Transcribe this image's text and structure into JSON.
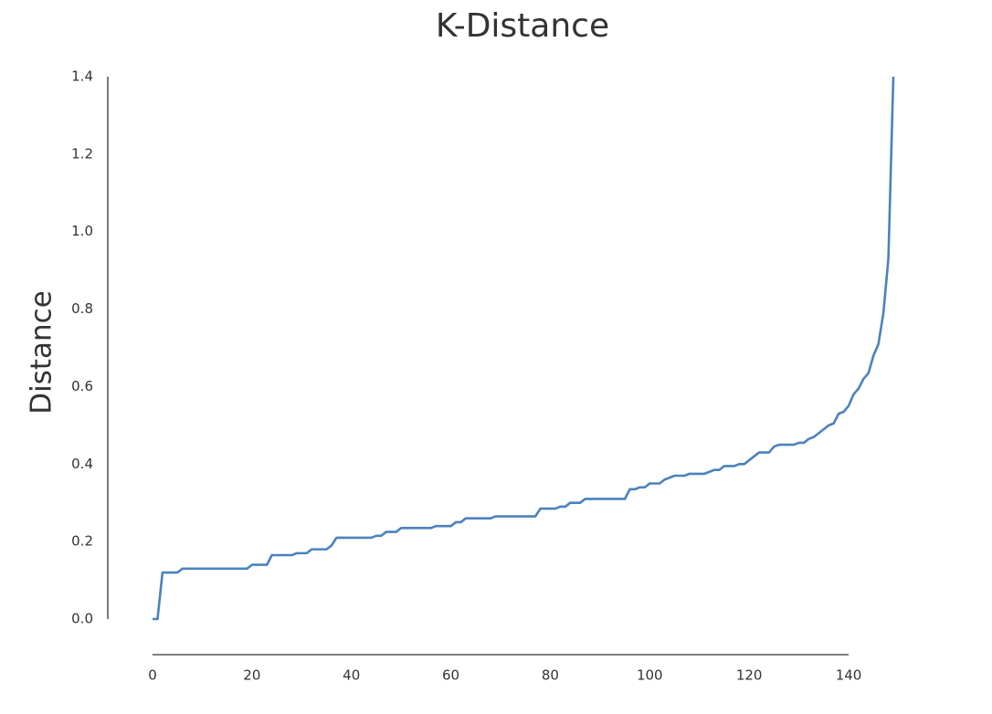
{
  "chart_data": {
    "type": "line",
    "title": "K-Distance",
    "y_label": "Distance",
    "color": "#4a82be",
    "grid": false,
    "x": [
      0,
      1,
      2,
      3,
      4,
      5,
      6,
      7,
      8,
      9,
      10,
      11,
      12,
      13,
      14,
      15,
      16,
      17,
      18,
      19,
      20,
      21,
      22,
      23,
      24,
      25,
      26,
      27,
      28,
      29,
      30,
      31,
      32,
      33,
      34,
      35,
      36,
      37,
      38,
      39,
      40,
      41,
      42,
      43,
      44,
      45,
      46,
      47,
      48,
      49,
      50,
      51,
      52,
      53,
      54,
      55,
      56,
      57,
      58,
      59,
      60,
      61,
      62,
      63,
      64,
      65,
      66,
      67,
      68,
      69,
      70,
      71,
      72,
      73,
      74,
      75,
      76,
      77,
      78,
      79,
      80,
      81,
      82,
      83,
      84,
      85,
      86,
      87,
      88,
      89,
      90,
      91,
      92,
      93,
      94,
      95,
      96,
      97,
      98,
      99,
      100,
      101,
      102,
      103,
      104,
      105,
      106,
      107,
      108,
      109,
      110,
      111,
      112,
      113,
      114,
      115,
      116,
      117,
      118,
      119,
      120,
      121,
      122,
      123,
      124,
      125,
      126,
      127,
      128,
      129,
      130,
      131,
      132,
      133,
      134,
      135,
      136,
      137,
      138,
      139,
      140,
      141,
      142,
      143,
      144,
      145,
      146,
      147,
      148,
      149
    ],
    "values": [
      0,
      0,
      0.12,
      0.12,
      0.12,
      0.12,
      0.13,
      0.13,
      0.13,
      0.13,
      0.13,
      0.13,
      0.13,
      0.13,
      0.13,
      0.13,
      0.13,
      0.13,
      0.13,
      0.13,
      0.14,
      0.14,
      0.14,
      0.14,
      0.165,
      0.165,
      0.165,
      0.165,
      0.165,
      0.17,
      0.17,
      0.17,
      0.18,
      0.18,
      0.18,
      0.18,
      0.19,
      0.21,
      0.21,
      0.21,
      0.21,
      0.21,
      0.21,
      0.21,
      0.21,
      0.215,
      0.215,
      0.225,
      0.225,
      0.225,
      0.235,
      0.235,
      0.235,
      0.235,
      0.235,
      0.235,
      0.235,
      0.24,
      0.24,
      0.24,
      0.24,
      0.25,
      0.25,
      0.26,
      0.26,
      0.26,
      0.26,
      0.26,
      0.26,
      0.265,
      0.265,
      0.265,
      0.265,
      0.265,
      0.265,
      0.265,
      0.265,
      0.265,
      0.285,
      0.285,
      0.285,
      0.285,
      0.29,
      0.29,
      0.3,
      0.3,
      0.3,
      0.31,
      0.31,
      0.31,
      0.31,
      0.31,
      0.31,
      0.31,
      0.31,
      0.31,
      0.335,
      0.335,
      0.34,
      0.34,
      0.35,
      0.35,
      0.35,
      0.36,
      0.365,
      0.37,
      0.37,
      0.37,
      0.375,
      0.375,
      0.375,
      0.375,
      0.38,
      0.385,
      0.385,
      0.395,
      0.395,
      0.395,
      0.4,
      0.4,
      0.41,
      0.42,
      0.43,
      0.43,
      0.43,
      0.445,
      0.45,
      0.45,
      0.45,
      0.45,
      0.455,
      0.455,
      0.465,
      0.47,
      0.48,
      0.49,
      0.5,
      0.505,
      0.53,
      0.535,
      0.55,
      0.58,
      0.595,
      0.62,
      0.635,
      0.68,
      0.71,
      0.79,
      0.93,
      1.4
    ],
    "xlim": [
      0,
      149
    ],
    "ylim": [
      0,
      1.4
    ],
    "xticks": [
      0,
      20,
      40,
      60,
      80,
      100,
      120,
      140
    ],
    "yticks": [
      {
        "value": 0,
        "label": "0.0"
      },
      0.2,
      0.4,
      0.6,
      0.8,
      {
        "value": 1,
        "label": "1.0"
      },
      1.2,
      1.4
    ]
  }
}
